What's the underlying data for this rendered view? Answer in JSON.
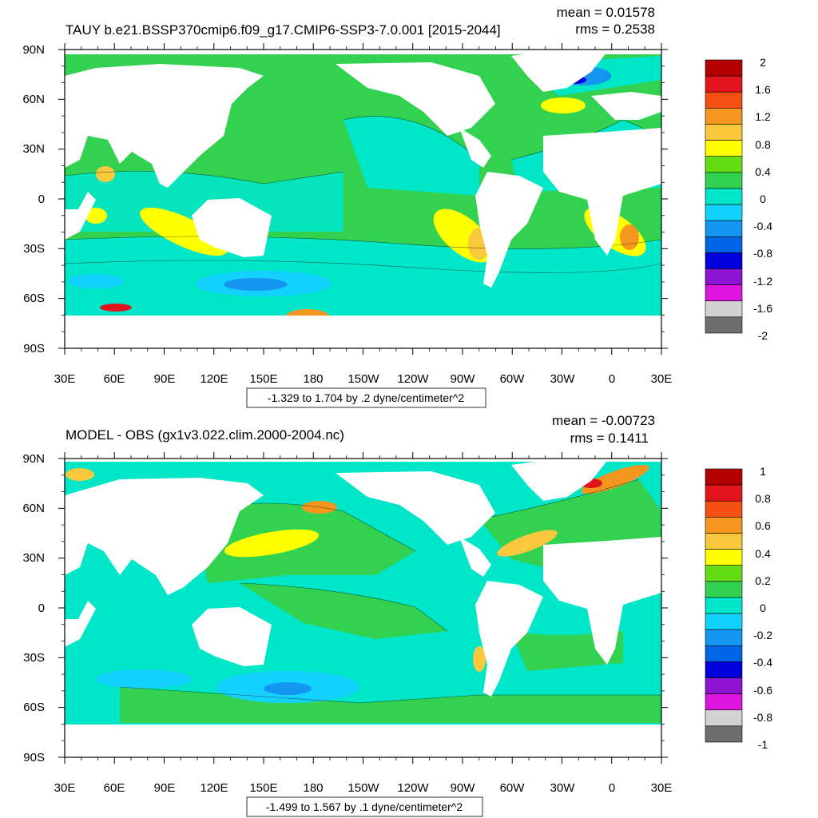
{
  "chart_data": [
    {
      "type": "heatmap",
      "title": "TAUY b.e21.BSSP370cmip6.f09_g17.CMIP6-SSP3-7.0.001 [2015-2044]",
      "mean_text": "mean = 0.01578",
      "rms_text": "rms = 0.2538",
      "x_ticks": [
        "30E",
        "60E",
        "90E",
        "120E",
        "150E",
        "180",
        "150W",
        "120W",
        "90W",
        "60W",
        "30W",
        "0",
        "30E"
      ],
      "y_ticks": [
        "90N",
        "60N",
        "30N",
        "0",
        "30S",
        "60S",
        "90S"
      ],
      "xlim": [
        30,
        390
      ],
      "ylim": [
        -90,
        90
      ],
      "contour_info": "-1.329 to 1.704 by .2 dyne/centimeter^2",
      "colorbar_labels": [
        "2",
        "1.6",
        "1.2",
        "0.8",
        "0.4",
        "0",
        "-0.4",
        "-0.8",
        "-1.2",
        "-1.6",
        "-2"
      ],
      "colorbar_colors": [
        "#b40000",
        "#e1141e",
        "#f55014",
        "#f5961e",
        "#fac83c",
        "#ffff00",
        "#64dc14",
        "#32d250",
        "#00e6c8",
        "#14d2ff",
        "#1496f0",
        "#0064e6",
        "#0000dc",
        "#8c14d2",
        "#dc14dc",
        "#d2d2d2",
        "#6e6e6e"
      ]
    },
    {
      "type": "heatmap",
      "title": "MODEL - OBS (gx1v3.022.clim.2000-2004.nc)",
      "mean_text": "mean = -0.00723",
      "rms_text": "rms = 0.1411",
      "x_ticks": [
        "30E",
        "60E",
        "90E",
        "120E",
        "150E",
        "180",
        "150W",
        "120W",
        "90W",
        "60W",
        "30W",
        "0",
        "30E"
      ],
      "y_ticks": [
        "90N",
        "60N",
        "30N",
        "0",
        "30S",
        "60S",
        "90S"
      ],
      "xlim": [
        30,
        390
      ],
      "ylim": [
        -90,
        90
      ],
      "contour_info": "-1.499 to 1.567 by .1 dyne/centimeter^2",
      "colorbar_labels": [
        "1",
        "0.8",
        "0.6",
        "0.4",
        "0.2",
        "0",
        "-0.2",
        "-0.4",
        "-0.6",
        "-0.8",
        "-1"
      ],
      "colorbar_colors": [
        "#b40000",
        "#e1141e",
        "#f55014",
        "#f5961e",
        "#fac83c",
        "#ffff00",
        "#64dc14",
        "#32d250",
        "#00e6c8",
        "#14d2ff",
        "#1496f0",
        "#0064e6",
        "#0000dc",
        "#8c14d2",
        "#dc14dc",
        "#d2d2d2",
        "#6e6e6e"
      ]
    }
  ]
}
